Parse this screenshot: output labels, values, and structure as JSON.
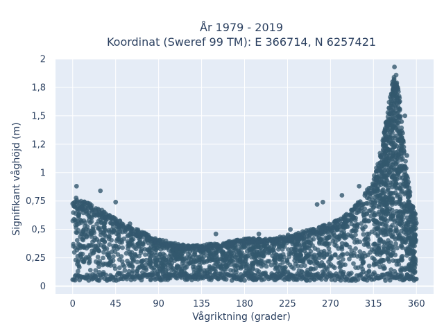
{
  "chart_data": {
    "type": "scatter",
    "title_line1": "År 1979 - 2019",
    "title_line2": "Koordinat (Sweref 99 TM): E 366714, N 6257421",
    "xlabel": "Vågriktning (grader)",
    "ylabel": "Signifikant våghöjd (m)",
    "xlim": [
      -18,
      378
    ],
    "ylim": [
      -0.07,
      2.0
    ],
    "x_ticks": [
      0,
      45,
      90,
      135,
      180,
      225,
      270,
      315,
      360
    ],
    "x_tick_labels": [
      "0",
      "45",
      "90",
      "135",
      "180",
      "225",
      "270",
      "315",
      "360"
    ],
    "y_ticks": [
      0,
      0.25,
      0.5,
      0.75,
      1,
      1.25,
      1.5,
      1.75,
      2
    ],
    "y_tick_labels": [
      "0",
      "0,25",
      "0,5",
      "0,75",
      "1",
      "1,2",
      "1,5",
      "1,8",
      "2"
    ],
    "grid": true,
    "marker_color": "#33586e",
    "plot_background": "#e5ecf6",
    "upper_envelope": {
      "x": [
        0,
        10,
        20,
        30,
        45,
        60,
        75,
        90,
        105,
        120,
        135,
        150,
        165,
        180,
        195,
        210,
        225,
        240,
        255,
        270,
        285,
        295,
        305,
        315,
        320,
        325,
        330,
        335,
        338,
        342,
        345,
        350,
        355,
        360
      ],
      "y": [
        0.8,
        0.75,
        0.72,
        0.68,
        0.6,
        0.52,
        0.48,
        0.42,
        0.38,
        0.36,
        0.36,
        0.38,
        0.4,
        0.42,
        0.42,
        0.42,
        0.45,
        0.48,
        0.52,
        0.55,
        0.62,
        0.7,
        0.8,
        0.95,
        1.1,
        1.3,
        1.55,
        1.8,
        1.9,
        1.7,
        1.4,
        1.0,
        0.75,
        0.6
      ]
    },
    "outliers": [
      {
        "x": 4,
        "y": 0.88
      },
      {
        "x": 29,
        "y": 0.84
      },
      {
        "x": 45,
        "y": 0.74
      },
      {
        "x": 60,
        "y": 0.55
      },
      {
        "x": 150,
        "y": 0.46
      },
      {
        "x": 195,
        "y": 0.46
      },
      {
        "x": 228,
        "y": 0.5
      },
      {
        "x": 256,
        "y": 0.72
      },
      {
        "x": 262,
        "y": 0.74
      },
      {
        "x": 282,
        "y": 0.8
      },
      {
        "x": 300,
        "y": 0.88
      },
      {
        "x": 337,
        "y": 1.93
      },
      {
        "x": 348,
        "y": 1.5
      },
      {
        "x": 350,
        "y": 1.15
      }
    ]
  }
}
